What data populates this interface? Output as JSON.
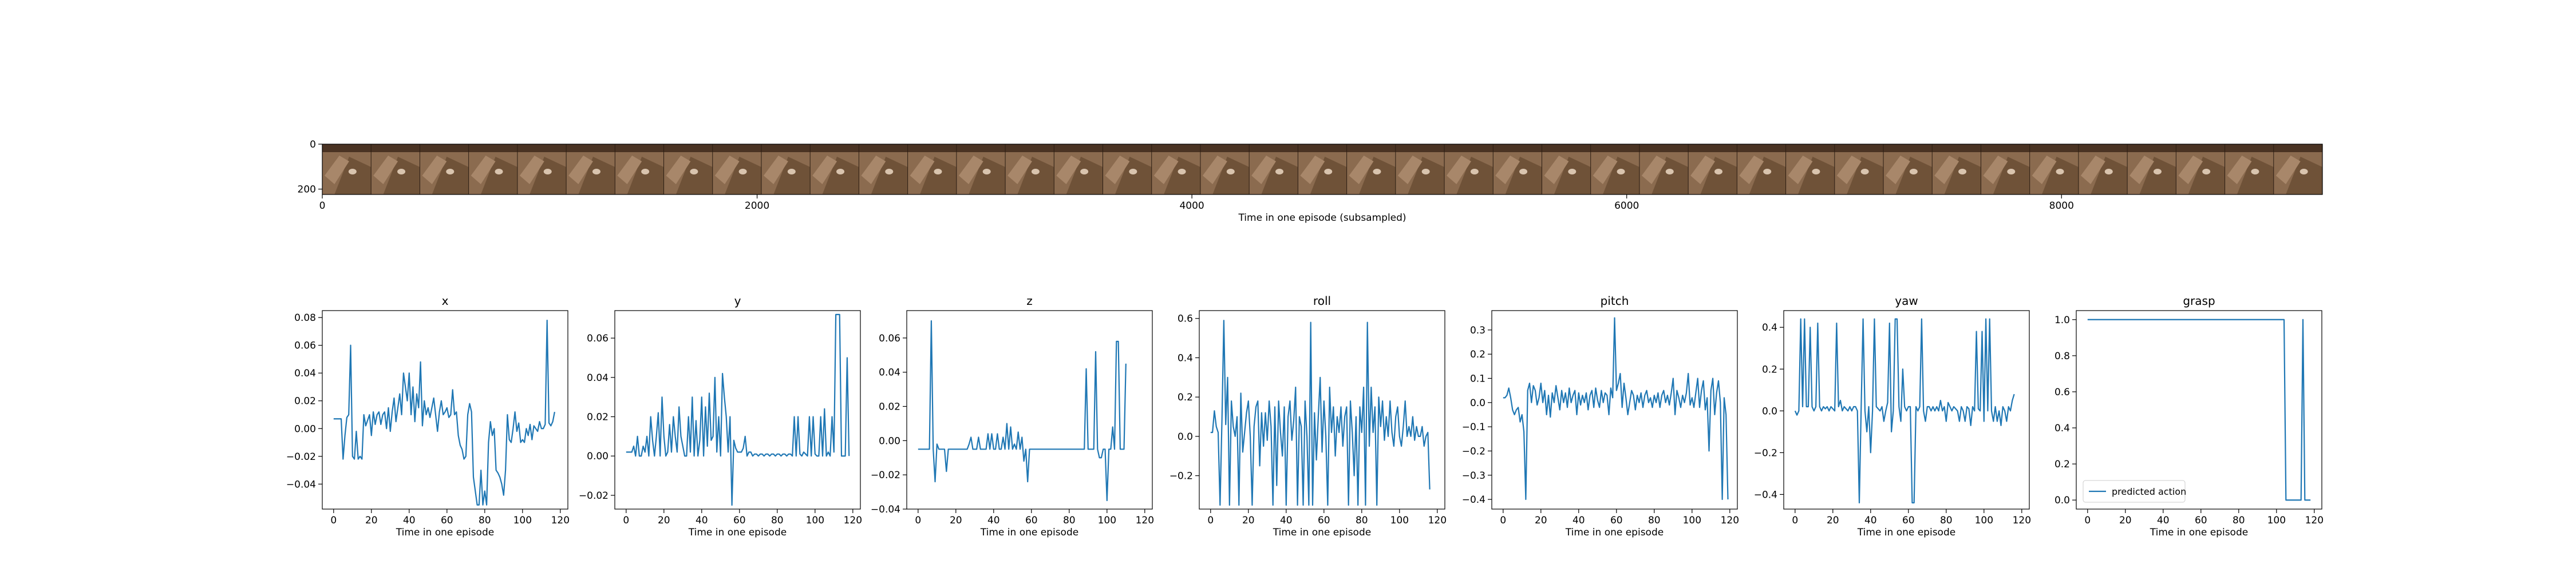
{
  "chart_data": [
    {
      "type": "image-strip",
      "xlabel": "Time in one episode (subsampled)",
      "xlim": [
        0,
        9200
      ],
      "ylim": [
        0,
        224
      ],
      "x_ticks": [
        0,
        2000,
        4000,
        6000,
        8000
      ],
      "y_ticks": [
        0,
        200
      ],
      "frame_count": 41,
      "frame_colors": [
        "#8b6b4f",
        "#6f5238",
        "#a8876a",
        "#d9c4ae",
        "#4a3323"
      ]
    },
    {
      "type": "line",
      "title": "x",
      "xlabel": "Time in one episode",
      "xlim": [
        -6,
        124
      ],
      "ylim": [
        -0.058,
        0.085
      ],
      "x_ticks": [
        0,
        20,
        40,
        60,
        80,
        100,
        120
      ],
      "y_ticks": [
        -0.04,
        -0.02,
        0.0,
        0.02,
        0.04,
        0.06,
        0.08
      ],
      "y_tick_labels": [
        "−0.04",
        "−0.02",
        "0.00",
        "0.02",
        "0.04",
        "0.06",
        "0.08"
      ],
      "series": [
        {
          "values": [
            0.007,
            0.007,
            0.007,
            0.007,
            0.007,
            -0.022,
            -0.005,
            0.008,
            0.01,
            0.06,
            -0.02,
            -0.022,
            -0.002,
            -0.022,
            -0.02,
            -0.022,
            0.01,
            0.002,
            0.006,
            0.01,
            -0.005,
            0.012,
            0.003,
            0.01,
            0.012,
            0.003,
            0.01,
            0.012,
            0.0,
            0.015,
            -0.002,
            0.012,
            0.022,
            0.005,
            0.015,
            0.025,
            0.01,
            0.04,
            0.03,
            0.02,
            0.04,
            0.01,
            0.03,
            0.005,
            0.025,
            0.015,
            0.048,
            0.002,
            0.02,
            0.01,
            0.015,
            0.008,
            0.015,
            0.022,
            0.01,
            -0.002,
            0.012,
            0.02,
            0.01,
            0.012,
            0.015,
            0.008,
            0.01,
            0.028,
            0.01,
            0.012,
            -0.005,
            -0.012,
            -0.015,
            -0.022,
            -0.02,
            0.01,
            0.018,
            0.012,
            -0.035,
            -0.045,
            -0.055,
            -0.055,
            -0.03,
            -0.055,
            -0.045,
            -0.055,
            -0.01,
            0.005,
            -0.005,
            0.0,
            -0.03,
            -0.032,
            -0.035,
            -0.04,
            -0.048,
            -0.03,
            0.01,
            -0.008,
            -0.01,
            0.0,
            0.012,
            -0.002,
            0.004,
            -0.01,
            -0.008,
            -0.01,
            0.0,
            -0.005,
            0.003,
            -0.008,
            0.002,
            0.0,
            -0.002,
            0.005,
            0.0,
            0.0,
            0.003,
            0.078,
            0.004,
            0.002,
            0.005,
            0.012
          ]
        }
      ]
    },
    {
      "type": "line",
      "title": "y",
      "xlabel": "Time in one episode",
      "xlim": [
        -6,
        124
      ],
      "ylim": [
        -0.027,
        0.074
      ],
      "x_ticks": [
        0,
        20,
        40,
        60,
        80,
        100,
        120
      ],
      "y_ticks": [
        -0.02,
        0.0,
        0.02,
        0.04,
        0.06
      ],
      "y_tick_labels": [
        "−0.02",
        "0.00",
        "0.02",
        "0.04",
        "0.06"
      ],
      "series": [
        {
          "values": [
            0.002,
            0.002,
            0.002,
            0.002,
            0.005,
            0.0,
            0.01,
            0.0,
            0.0,
            0.005,
            0.002,
            0.01,
            0.0,
            0.02,
            0.008,
            0.0,
            0.01,
            0.022,
            0.0,
            0.03,
            0.01,
            0.0,
            0.002,
            0.016,
            0.002,
            0.02,
            0.01,
            0.002,
            0.025,
            0.01,
            0.005,
            0.0,
            0.0,
            0.02,
            0.002,
            0.03,
            0.0,
            0.018,
            0.0,
            0.008,
            0.03,
            0.0,
            0.025,
            0.005,
            0.032,
            0.008,
            0.01,
            0.04,
            0.002,
            0.02,
            0.0,
            0.042,
            0.03,
            0.02,
            0.002,
            0.02,
            -0.025,
            0.008,
            0.004,
            0.002,
            0.002,
            0.002,
            0.004,
            0.01,
            0.0,
            0.002,
            0.002,
            0.0,
            0.001,
            0.001,
            0.0,
            0.001,
            0.001,
            0.0,
            0.001,
            0.001,
            0.0,
            0.001,
            0.001,
            0.0,
            0.001,
            0.001,
            0.0,
            0.001,
            0.001,
            0.0,
            0.001,
            0.001,
            0.0,
            0.02,
            0.0,
            0.02,
            0.001,
            0.0,
            0.002,
            0.001,
            0.0,
            0.02,
            0.0,
            0.02,
            0.001,
            0.0,
            0.0,
            0.02,
            0.0,
            0.024,
            0.0,
            0.002,
            0.0,
            0.02,
            0.002,
            0.072,
            0.072,
            0.072,
            0.0,
            0.0,
            0.0,
            0.05,
            0.0
          ]
        }
      ]
    },
    {
      "type": "line",
      "title": "z",
      "xlabel": "Time in one episode",
      "xlim": [
        -6,
        124
      ],
      "ylim": [
        -0.04,
        0.076
      ],
      "x_ticks": [
        0,
        20,
        40,
        60,
        80,
        100,
        120
      ],
      "y_ticks": [
        -0.04,
        -0.02,
        0.0,
        0.02,
        0.04,
        0.06
      ],
      "y_tick_labels": [
        "−0.04",
        "−0.02",
        "0.00",
        "0.02",
        "0.04",
        "0.06"
      ],
      "series": [
        {
          "values": [
            -0.005,
            -0.005,
            -0.005,
            -0.005,
            -0.005,
            -0.005,
            -0.005,
            0.07,
            -0.005,
            -0.024,
            -0.002,
            -0.005,
            -0.005,
            -0.005,
            -0.005,
            -0.018,
            -0.005,
            -0.005,
            -0.005,
            -0.005,
            -0.005,
            -0.005,
            -0.005,
            -0.005,
            -0.005,
            -0.005,
            -0.005,
            -0.002,
            0.002,
            -0.005,
            -0.005,
            -0.005,
            0.002,
            -0.005,
            -0.005,
            -0.005,
            -0.005,
            0.004,
            -0.005,
            0.004,
            -0.005,
            -0.005,
            0.004,
            -0.005,
            -0.005,
            0.002,
            -0.005,
            0.01,
            -0.005,
            0.008,
            -0.005,
            -0.002,
            -0.005,
            0.005,
            -0.005,
            0.002,
            -0.012,
            -0.005,
            -0.024,
            -0.005,
            -0.005,
            -0.005,
            -0.005,
            -0.005,
            -0.005,
            -0.005,
            -0.005,
            -0.005,
            -0.005,
            -0.005,
            -0.005,
            -0.005,
            -0.005,
            -0.005,
            -0.005,
            -0.005,
            -0.005,
            -0.005,
            -0.005,
            -0.005,
            -0.005,
            -0.005,
            -0.005,
            -0.005,
            -0.005,
            -0.005,
            -0.005,
            -0.005,
            -0.005,
            0.042,
            -0.005,
            -0.005,
            -0.005,
            -0.005,
            0.052,
            -0.005,
            -0.01,
            -0.01,
            -0.005,
            -0.005,
            -0.035,
            -0.005,
            -0.005,
            0.008,
            -0.005,
            0.058,
            0.058,
            -0.005,
            -0.005,
            -0.005,
            0.045
          ]
        }
      ]
    },
    {
      "type": "line",
      "title": "roll",
      "xlabel": "Time in one episode",
      "xlim": [
        -6,
        124
      ],
      "ylim": [
        -0.37,
        0.64
      ],
      "x_ticks": [
        0,
        20,
        40,
        60,
        80,
        100,
        120
      ],
      "y_ticks": [
        -0.2,
        0.0,
        0.2,
        0.4,
        0.6
      ],
      "y_tick_labels": [
        "−0.2",
        "0.0",
        "0.2",
        "0.4",
        "0.6"
      ],
      "series": [
        {
          "values": [
            0.02,
            0.02,
            0.13,
            0.05,
            0.02,
            -0.35,
            0.08,
            0.59,
            0.06,
            0.3,
            -0.35,
            0.18,
            0.05,
            0.0,
            0.1,
            -0.35,
            0.22,
            -0.08,
            0.02,
            0.12,
            0.18,
            0.0,
            -0.35,
            0.05,
            0.15,
            0.18,
            -0.15,
            0.12,
            -0.05,
            0.12,
            -0.02,
            0.18,
            0.05,
            -0.35,
            0.15,
            -0.25,
            0.18,
            0.02,
            -0.1,
            0.15,
            -0.35,
            0.1,
            0.18,
            -0.02,
            0.08,
            0.25,
            -0.35,
            0.1,
            0.05,
            -0.35,
            0.18,
            0.0,
            -0.35,
            0.58,
            -0.35,
            0.12,
            -0.12,
            0.1,
            0.3,
            -0.08,
            0.18,
            0.0,
            -0.35,
            0.25,
            0.02,
            0.15,
            -0.1,
            0.1,
            0.02,
            0.15,
            -0.05,
            0.1,
            0.15,
            -0.35,
            0.18,
            0.02,
            -0.2,
            0.1,
            -0.35,
            0.15,
            0.02,
            0.25,
            -0.35,
            0.58,
            -0.05,
            0.25,
            0.02,
            0.15,
            -0.35,
            0.2,
            0.05,
            0.18,
            -0.02,
            0.1,
            0.0,
            0.18,
            0.02,
            -0.05,
            0.1,
            0.15,
            0.0,
            -0.05,
            0.05,
            0.18,
            0.0,
            0.05,
            0.0,
            0.1,
            -0.02,
            0.05,
            0.0,
            0.0,
            0.05,
            -0.05,
            0.0,
            0.02,
            -0.27
          ]
        }
      ]
    },
    {
      "type": "line",
      "title": "pitch",
      "xlabel": "Time in one episode",
      "xlim": [
        -6,
        124
      ],
      "ylim": [
        -0.44,
        0.38
      ],
      "x_ticks": [
        0,
        20,
        40,
        60,
        80,
        100,
        120
      ],
      "y_ticks": [
        -0.4,
        -0.3,
        -0.2,
        -0.1,
        0.0,
        0.1,
        0.2,
        0.3
      ],
      "y_tick_labels": [
        "−0.4",
        "−0.3",
        "−0.2",
        "−0.1",
        "0.0",
        "0.1",
        "0.2",
        "0.3"
      ],
      "series": [
        {
          "values": [
            0.02,
            0.02,
            0.03,
            0.06,
            0.02,
            -0.03,
            -0.05,
            -0.03,
            -0.02,
            -0.08,
            -0.05,
            -0.12,
            -0.4,
            0.05,
            0.08,
            0.0,
            0.07,
            0.05,
            -0.01,
            0.02,
            0.08,
            0.0,
            0.05,
            -0.05,
            0.03,
            -0.06,
            0.04,
            0.0,
            0.07,
            0.02,
            -0.03,
            0.05,
            0.0,
            0.04,
            -0.02,
            0.06,
            0.0,
            0.03,
            0.05,
            -0.05,
            0.04,
            -0.01,
            0.03,
            0.0,
            0.04,
            -0.03,
            0.03,
            0.05,
            -0.02,
            0.06,
            0.01,
            -0.02,
            0.05,
            0.0,
            0.04,
            0.03,
            -0.05,
            0.06,
            0.02,
            0.35,
            0.05,
            0.08,
            0.12,
            -0.02,
            0.08,
            0.02,
            -0.05,
            0.0,
            0.05,
            0.03,
            -0.03,
            0.03,
            0.0,
            0.04,
            -0.02,
            0.03,
            0.05,
            0.0,
            0.02,
            -0.02,
            0.03,
            0.0,
            0.04,
            -0.02,
            0.03,
            0.05,
            0.0,
            0.03,
            -0.01,
            0.04,
            0.1,
            -0.05,
            0.05,
            0.02,
            -0.02,
            0.03,
            0.0,
            0.04,
            0.12,
            -0.01,
            0.02,
            -0.02,
            0.04,
            0.1,
            -0.02,
            0.05,
            0.09,
            -0.03,
            0.02,
            -0.2,
            0.05,
            0.1,
            -0.05,
            0.04,
            0.09,
            0.0,
            -0.4,
            0.02,
            -0.05,
            -0.4
          ]
        }
      ]
    },
    {
      "type": "line",
      "title": "yaw",
      "xlabel": "Time in one episode",
      "xlim": [
        -6,
        124
      ],
      "ylim": [
        -0.47,
        0.48
      ],
      "x_ticks": [
        0,
        20,
        40,
        60,
        80,
        100,
        120
      ],
      "y_ticks": [
        -0.4,
        -0.2,
        0.0,
        0.2,
        0.4
      ],
      "y_tick_labels": [
        "−0.4",
        "−0.2",
        "0.0",
        "0.2",
        "0.4"
      ],
      "series": [
        {
          "values": [
            0.0,
            -0.02,
            0.0,
            0.44,
            0.02,
            0.44,
            0.02,
            0.02,
            0.4,
            0.02,
            0.0,
            0.02,
            0.42,
            0.02,
            0.0,
            0.02,
            0.01,
            0.02,
            0.0,
            0.02,
            0.01,
            0.0,
            0.42,
            0.02,
            0.05,
            0.0,
            0.02,
            0.01,
            0.0,
            0.02,
            0.0,
            0.02,
            0.02,
            0.0,
            -0.44,
            0.02,
            0.44,
            0.0,
            -0.1,
            0.02,
            -0.2,
            0.0,
            0.44,
            0.02,
            0.01,
            0.0,
            0.02,
            -0.05,
            0.0,
            0.04,
            0.42,
            -0.1,
            0.0,
            0.44,
            0.44,
            0.02,
            -0.05,
            0.2,
            0.02,
            0.0,
            0.02,
            0.02,
            -0.44,
            -0.44,
            0.02,
            0.0,
            0.02,
            0.44,
            0.0,
            -0.05,
            0.02,
            0.02,
            0.0,
            0.02,
            0.0,
            0.02,
            0.0,
            0.05,
            0.0,
            0.02,
            -0.05,
            0.04,
            0.02,
            0.0,
            0.02,
            0.01,
            0.0,
            -0.05,
            0.02,
            0.0,
            -0.05,
            0.02,
            0.01,
            -0.07,
            0.02,
            0.0,
            0.38,
            0.01,
            0.0,
            0.38,
            -0.05,
            0.44,
            0.0,
            0.44,
            0.0,
            -0.05,
            0.02,
            -0.05,
            0.0,
            -0.07,
            0.02,
            0.0,
            -0.05,
            0.02,
            0.0,
            0.05,
            0.08
          ]
        }
      ]
    },
    {
      "type": "line",
      "title": "grasp",
      "xlabel": "Time in one episode",
      "xlim": [
        -6,
        124
      ],
      "ylim": [
        -0.05,
        1.05
      ],
      "x_ticks": [
        0,
        20,
        40,
        60,
        80,
        100,
        120
      ],
      "y_ticks": [
        0.0,
        0.2,
        0.4,
        0.6,
        0.8,
        1.0
      ],
      "y_tick_labels": [
        "0.0",
        "0.2",
        "0.4",
        "0.6",
        "0.8",
        "1.0"
      ],
      "legend": "lower-left",
      "series": [
        {
          "name": "predicted action",
          "step_x": [
            0,
            104,
            105,
            113,
            114,
            115,
            118
          ],
          "step_y": [
            1.0,
            1.0,
            0.0,
            0.0,
            1.0,
            0.0,
            0.0
          ]
        }
      ]
    }
  ],
  "style": {
    "line_color": "#1f77b4",
    "axis_color": "#000000"
  }
}
